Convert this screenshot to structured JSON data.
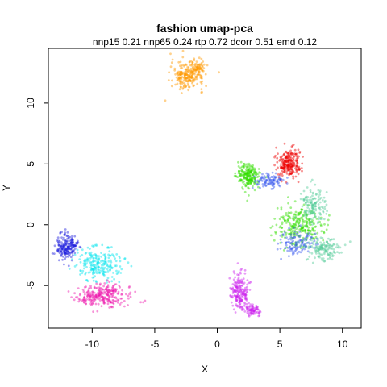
{
  "chart_data": {
    "type": "scatter",
    "title": "fashion umap-pca",
    "subtitle": "nnp15 0.21 nnp65 0.24 rtp 0.72 dcorr 0.51 emd 0.12",
    "xlabel": "X",
    "ylabel": "Y",
    "xlim": [
      -13.5,
      11.5
    ],
    "ylim": [
      -8.5,
      14.5
    ],
    "xticks": [
      -10,
      -5,
      0,
      5,
      10
    ],
    "yticks": [
      -5,
      0,
      5,
      10
    ],
    "grid": false,
    "legend": "none",
    "series": [
      {
        "color": "#ff9900",
        "clusters": [
          [
            -2.4,
            12.3,
            1.3,
            1.2,
            220
          ],
          [
            -1.5,
            12.8,
            0.5,
            0.6,
            60
          ]
        ]
      },
      {
        "color": "#33dd00",
        "clusters": [
          [
            2.5,
            4.0,
            0.9,
            1.0,
            220
          ],
          [
            6.5,
            0.0,
            1.8,
            1.6,
            260
          ]
        ]
      },
      {
        "color": "#ee0000",
        "clusters": [
          [
            5.7,
            5.0,
            1.0,
            1.1,
            240
          ]
        ]
      },
      {
        "color": "#2222dd",
        "clusters": [
          [
            -12.0,
            -1.8,
            0.8,
            1.0,
            200
          ]
        ]
      },
      {
        "color": "#00e5ee",
        "clusters": [
          [
            -9.5,
            -3.2,
            1.8,
            1.4,
            220
          ]
        ]
      },
      {
        "color": "#ee11aa",
        "clusters": [
          [
            -9.0,
            -5.8,
            2.2,
            0.9,
            260
          ]
        ]
      },
      {
        "color": "#cc22ee",
        "clusters": [
          [
            1.8,
            -5.5,
            0.7,
            1.4,
            180
          ],
          [
            2.8,
            -7.0,
            0.6,
            0.5,
            80
          ]
        ]
      },
      {
        "color": "#3355ee",
        "clusters": [
          [
            4.2,
            3.6,
            1.2,
            0.6,
            100
          ],
          [
            6.2,
            -1.5,
            1.5,
            1.0,
            120
          ]
        ]
      },
      {
        "color": "#55cc99",
        "clusters": [
          [
            7.6,
            1.5,
            1.0,
            1.6,
            140
          ],
          [
            8.5,
            -2.0,
            1.4,
            1.0,
            140
          ]
        ]
      }
    ]
  }
}
